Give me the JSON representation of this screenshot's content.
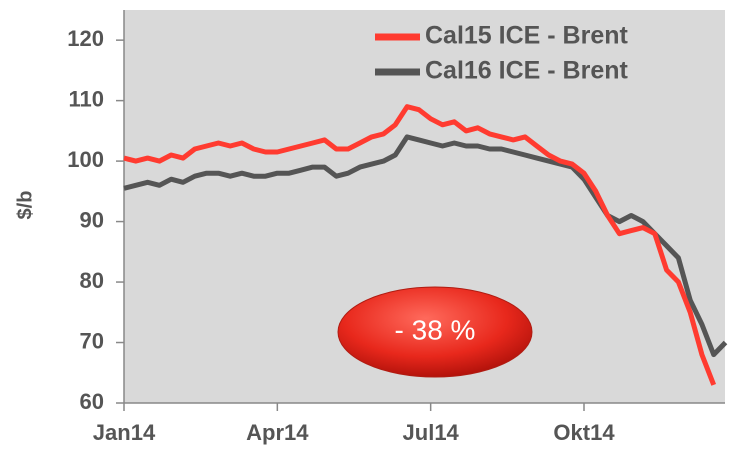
{
  "chart_data": {
    "type": "line",
    "y_label": "$/b",
    "annotation": "- 38 %",
    "categories": [
      "Jan14",
      null,
      null,
      null,
      null,
      null,
      null,
      null,
      null,
      null,
      null,
      null,
      null,
      "Apr14",
      null,
      null,
      null,
      null,
      null,
      null,
      null,
      null,
      null,
      null,
      null,
      null,
      "Jul14",
      null,
      null,
      null,
      null,
      null,
      null,
      null,
      null,
      null,
      null,
      null,
      null,
      "Okt14",
      null,
      null,
      null,
      null,
      null,
      null,
      null,
      null,
      null,
      null,
      null,
      null
    ],
    "series": [
      {
        "name": "Cal15 ICE - Brent",
        "color": "#ff3b30",
        "values": [
          100.5,
          100,
          100.5,
          100,
          101,
          100.5,
          102,
          102.5,
          103,
          102.5,
          103,
          102,
          101.5,
          101.5,
          102,
          102.5,
          103,
          103.5,
          102,
          102,
          103,
          104,
          104.5,
          106,
          109,
          108.5,
          107,
          106,
          106.5,
          105,
          105.5,
          104.5,
          104,
          103.5,
          104,
          102.5,
          101,
          100,
          99.5,
          98,
          95,
          91,
          88,
          88.5,
          89,
          88,
          82,
          80,
          75,
          68,
          63,
          null
        ]
      },
      {
        "name": "Cal16 ICE - Brent",
        "color": "#555555",
        "values": [
          95.5,
          96,
          96.5,
          96,
          97,
          96.5,
          97.5,
          98,
          98,
          97.5,
          98,
          97.5,
          97.5,
          98,
          98,
          98.5,
          99,
          99,
          97.5,
          98,
          99,
          99.5,
          100,
          101,
          104,
          103.5,
          103,
          102.5,
          103,
          102.5,
          102.5,
          102,
          102,
          101.5,
          101,
          100.5,
          100,
          99.5,
          99,
          97,
          94,
          91,
          90,
          91,
          90,
          88,
          86,
          84,
          77,
          73,
          68,
          70
        ]
      }
    ],
    "ylim": [
      60,
      123
    ],
    "yticks": [
      60,
      70,
      80,
      90,
      100,
      110,
      120
    ],
    "grid": false,
    "legend": "top-right"
  }
}
